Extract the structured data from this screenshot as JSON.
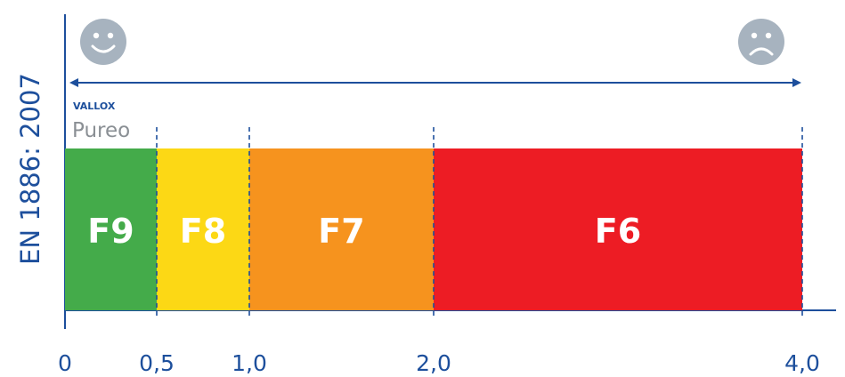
{
  "chart_data": {
    "type": "bar",
    "orientation": "horizontal-stacked-range",
    "ylabel": "EN 1886: 2007",
    "brand": {
      "name": "VALLOX",
      "product": "Pureo"
    },
    "scale_icons": {
      "left": "smiley-happy-icon",
      "right": "smiley-sad-icon"
    },
    "segments": [
      {
        "label": "F9",
        "start": 0,
        "end": 0.5,
        "color": "#44ab4a"
      },
      {
        "label": "F8",
        "start": 0.5,
        "end": 1.0,
        "color": "#fcd815"
      },
      {
        "label": "F7",
        "start": 1.0,
        "end": 2.0,
        "color": "#f6931e"
      },
      {
        "label": "F6",
        "start": 2.0,
        "end": 4.0,
        "color": "#ed1c24"
      }
    ],
    "ticks": [
      {
        "value": 0,
        "label": "0"
      },
      {
        "value": 0.5,
        "label": "0,5"
      },
      {
        "value": 1.0,
        "label": "1,0"
      },
      {
        "value": 2.0,
        "label": "2,0"
      },
      {
        "value": 4.0,
        "label": "4,0"
      }
    ],
    "xlim": [
      0,
      4.0
    ],
    "axis_color": "#1d4f9c",
    "icon_color": "#a7b3bf",
    "grid": false
  }
}
